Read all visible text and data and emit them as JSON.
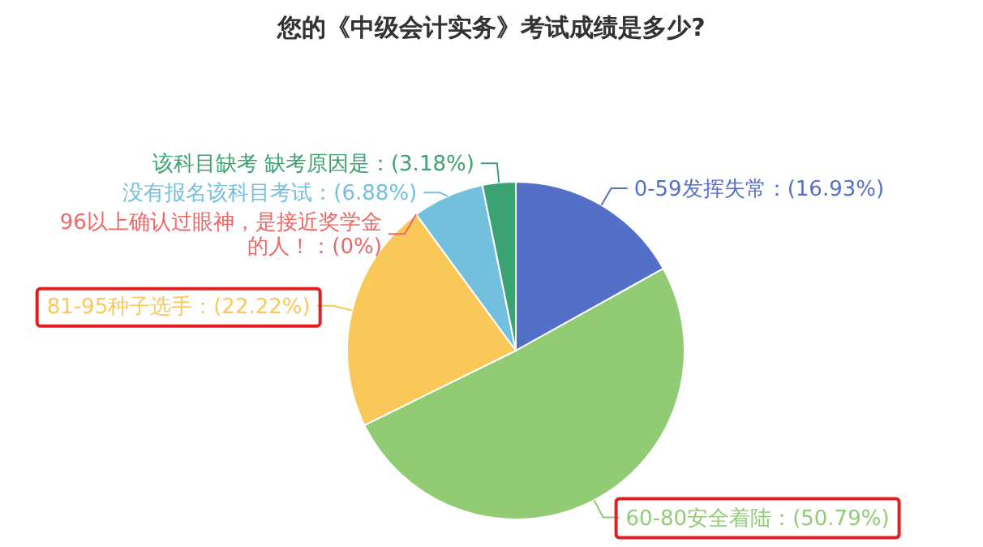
{
  "chart_data": {
    "type": "pie",
    "title": "您的《中级会计实务》考试成绩是多少?",
    "categories": [
      "0-59发挥失常",
      "60-80安全着陆",
      "81-95种子选手",
      "96以上确认过眼神，是接近奖学金的人！",
      "没有报名该科目考试",
      "该科目缺考 缺考原因是"
    ],
    "values": [
      16.93,
      50.79,
      22.22,
      0,
      6.88,
      3.18
    ],
    "value_labels": [
      "：(16.93%)",
      "：(50.79%)",
      "：(22.22%)",
      "：(0%)",
      "：(6.88%)",
      "：(3.18%)"
    ],
    "colors": [
      "#5470c6",
      "#91cc75",
      "#fac858",
      "#ee6666",
      "#73c0de",
      "#3ba272"
    ]
  }
}
